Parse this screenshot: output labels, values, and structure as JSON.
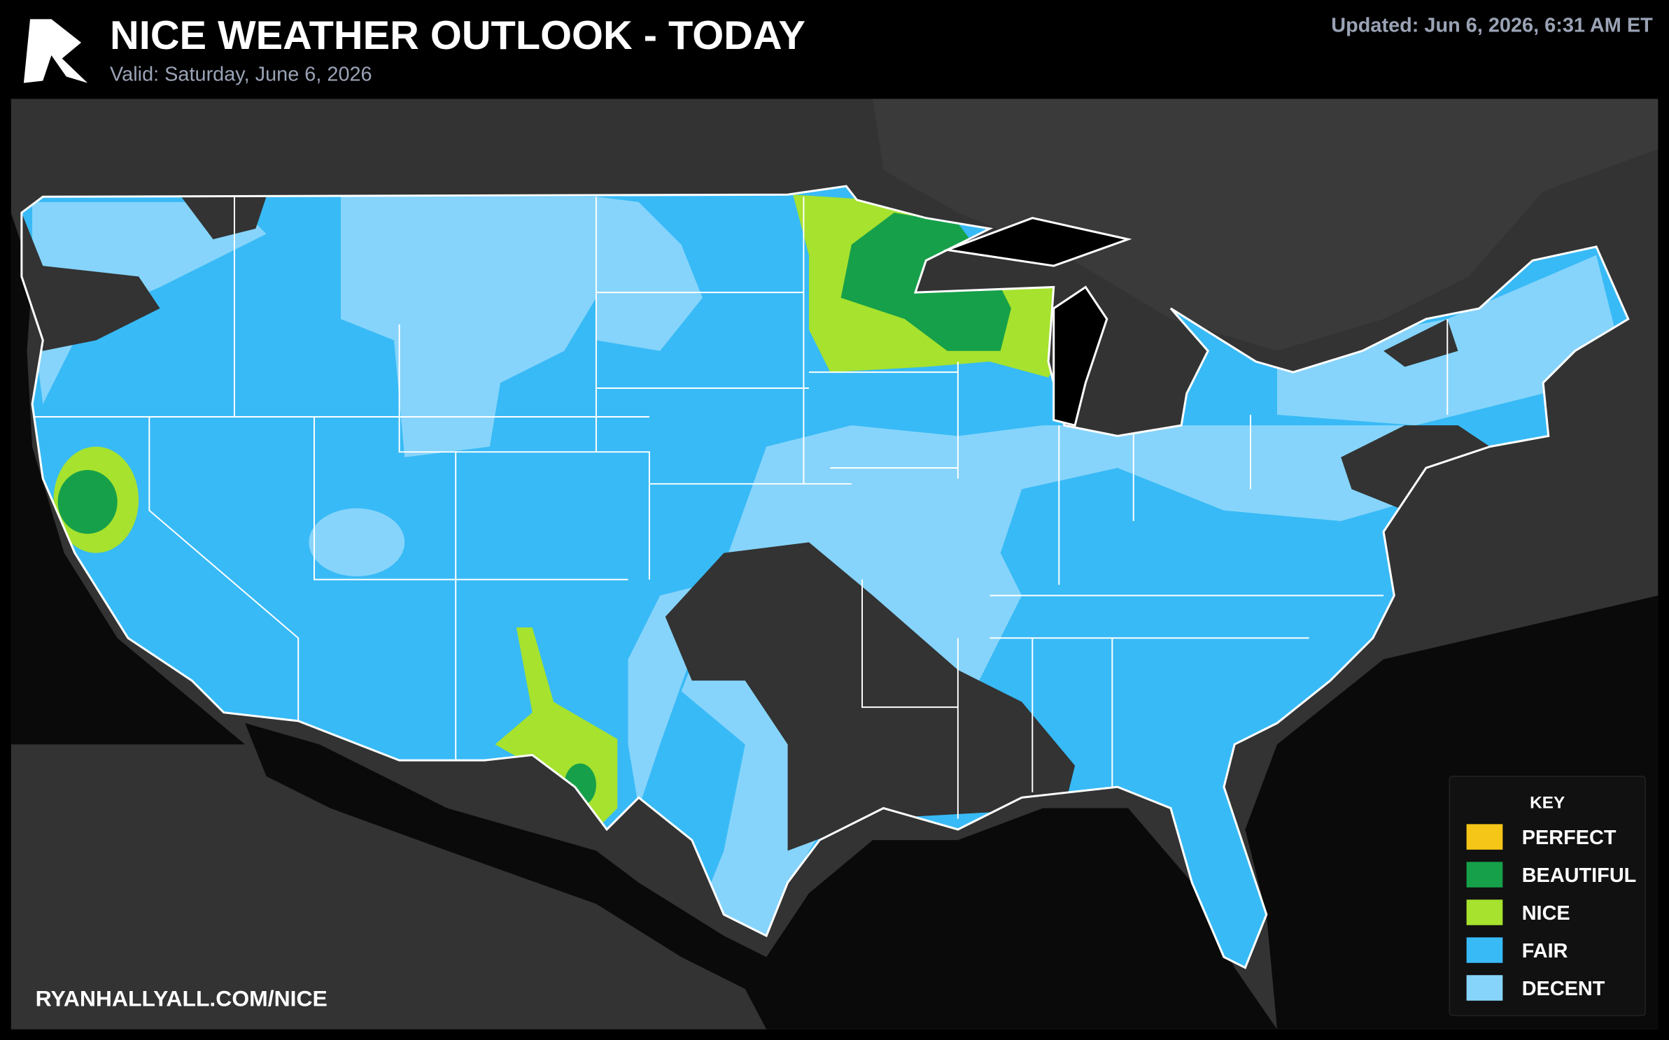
{
  "header": {
    "title": "NICE WEATHER OUTLOOK - TODAY",
    "valid": "Valid: Saturday, June 6, 2026",
    "updated": "Updated: Jun 6, 2026, 6:31 AM ET"
  },
  "footer": {
    "url": "RYANHALLYALL.COM/NICE"
  },
  "legend": {
    "title": "KEY",
    "items": [
      {
        "label": "PERFECT",
        "color": "#f5c518"
      },
      {
        "label": "BEAUTIFUL",
        "color": "#16a04a"
      },
      {
        "label": "NICE",
        "color": "#a6e22e"
      },
      {
        "label": "FAIR",
        "color": "#38baf6"
      },
      {
        "label": "DECENT",
        "color": "#86d4fb"
      }
    ]
  }
}
